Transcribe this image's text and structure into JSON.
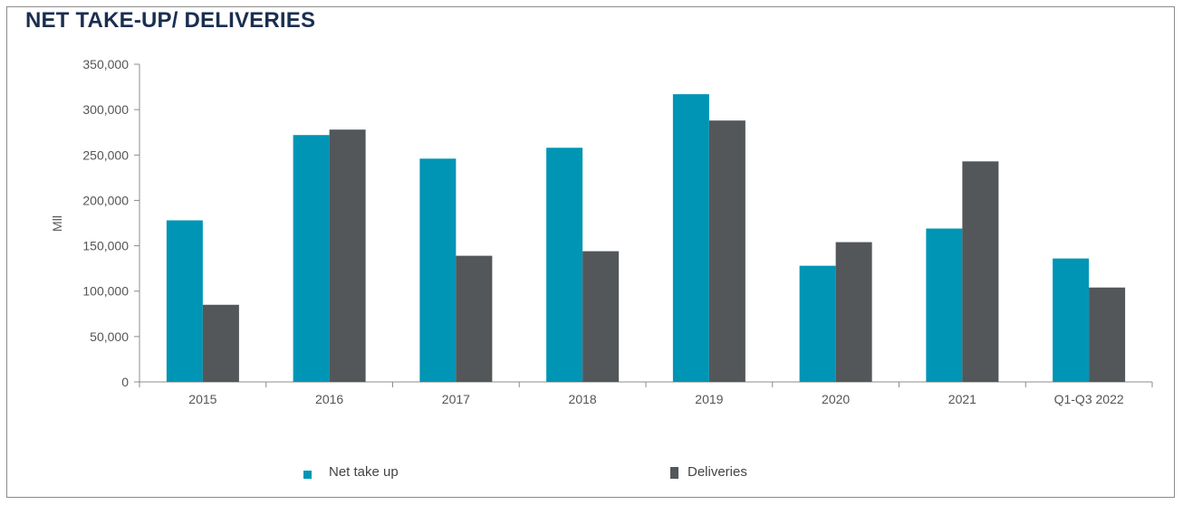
{
  "title": "NET TAKE-UP/ DELIVERIES",
  "colors": {
    "net_take_up": "#0095b5",
    "deliveries": "#53575a",
    "axis": "#8c8c8c"
  },
  "chart_data": {
    "type": "bar",
    "categories": [
      "2015",
      "2016",
      "2017",
      "2018",
      "2019",
      "2020",
      "2021",
      "Q1-Q3 2022"
    ],
    "series": [
      {
        "name": "Net take up",
        "values": [
          178000,
          272000,
          246000,
          258000,
          317000,
          128000,
          169000,
          136000
        ]
      },
      {
        "name": "Deliveries",
        "values": [
          85000,
          278000,
          139000,
          144000,
          288000,
          154000,
          243000,
          104000
        ]
      }
    ],
    "ylabel": "Mll",
    "ylim": [
      0,
      350000
    ],
    "yticks": [
      "0",
      "50,000",
      "100,000",
      "150,000",
      "200,000",
      "250,000",
      "300,000",
      "350,000"
    ],
    "ytick_values": [
      0,
      50000,
      100000,
      150000,
      200000,
      250000,
      300000,
      350000
    ],
    "grid": false,
    "legend": "bottom"
  }
}
